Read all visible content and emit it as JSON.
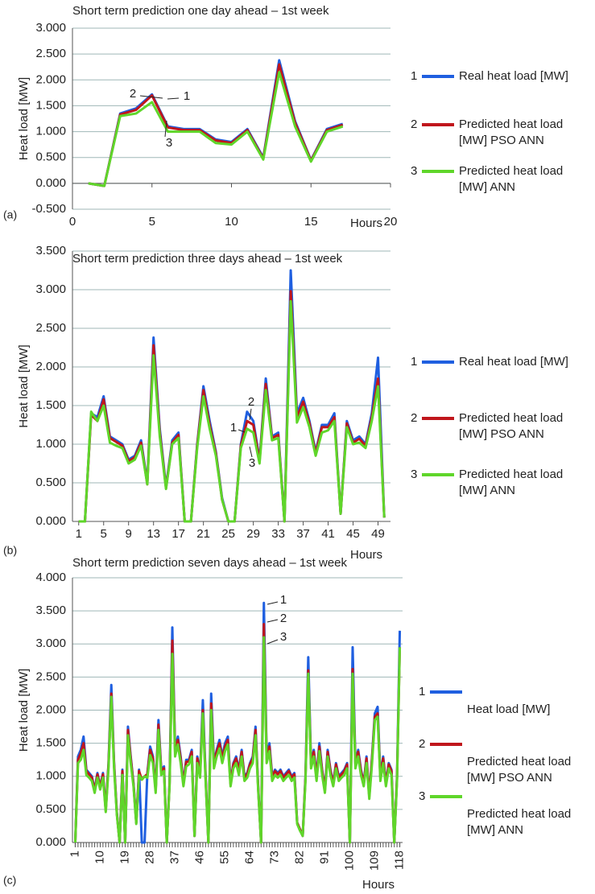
{
  "chart_data": [
    {
      "type": "line",
      "title": "Short term prediction one day ahead – 1st week",
      "panel_label": "(a)",
      "x_label": "Hours",
      "y_label": "Heat load [MW]",
      "grid": true,
      "x": [
        1,
        2,
        3,
        4,
        5,
        6,
        7,
        8,
        9,
        10,
        11,
        12,
        13,
        14,
        15,
        16,
        17
      ],
      "xlim": [
        0,
        20
      ],
      "xticks": [
        0,
        5,
        10,
        15,
        20
      ],
      "ylim": [
        -0.5,
        3
      ],
      "yticks": [
        {
          "value": -0.5,
          "label": "-0.500"
        },
        {
          "value": 0,
          "label": "0.000"
        },
        {
          "value": 0.5,
          "label": "0.500"
        },
        {
          "value": 1,
          "label": "1.000"
        },
        {
          "value": 1.5,
          "label": "1.500"
        },
        {
          "value": 2,
          "label": "2.000"
        },
        {
          "value": 2.5,
          "label": "2.500"
        },
        {
          "value": 3,
          "label": "3.000"
        }
      ],
      "series": [
        {
          "label": "1",
          "name": "Real heat load [MW]",
          "color": "#1f5fe0",
          "values": [
            0,
            -0.05,
            1.35,
            1.45,
            1.72,
            1.1,
            1.05,
            1.05,
            0.85,
            0.8,
            1.05,
            0.5,
            2.38,
            1.2,
            0.45,
            1.05,
            1.15
          ]
        },
        {
          "label": "2",
          "name": "Predicted heat load [MW] PSO ANN",
          "color": "#c0161c",
          "values": [
            0,
            -0.05,
            1.33,
            1.42,
            1.7,
            1.08,
            1.03,
            1.03,
            0.83,
            0.78,
            1.03,
            0.48,
            2.3,
            1.17,
            0.44,
            1.03,
            1.13
          ]
        },
        {
          "label": "3",
          "name": "Predicted heat load [MW] ANN",
          "color": "#5fd62a",
          "values": [
            0,
            -0.05,
            1.3,
            1.35,
            1.57,
            1.0,
            1.0,
            1.0,
            0.78,
            0.75,
            1.0,
            0.46,
            2.15,
            1.1,
            0.42,
            1.0,
            1.1
          ]
        }
      ]
    },
    {
      "type": "line",
      "title": "Short term prediction three days ahead – 1st week",
      "panel_label": "(b)",
      "x_label": "Hours",
      "y_label": "Heat load [MW]",
      "grid": true,
      "x": [
        1,
        2,
        3,
        4,
        5,
        6,
        7,
        8,
        9,
        10,
        11,
        12,
        13,
        14,
        15,
        16,
        17,
        18,
        19,
        20,
        21,
        22,
        23,
        24,
        25,
        26,
        27,
        28,
        29,
        30,
        31,
        32,
        33,
        34,
        35,
        36,
        37,
        38,
        39,
        40,
        41,
        42,
        43,
        44,
        45,
        46,
        47,
        48,
        49,
        50
      ],
      "xlim": [
        0,
        51
      ],
      "xticks": [
        1,
        5,
        9,
        13,
        17,
        21,
        25,
        29,
        33,
        37,
        41,
        45,
        49
      ],
      "ylim": [
        0,
        3.5
      ],
      "yticks": [
        {
          "value": 0,
          "label": "0.000"
        },
        {
          "value": 0.5,
          "label": "0.500"
        },
        {
          "value": 1,
          "label": "1.000"
        },
        {
          "value": 1.5,
          "label": "1.500"
        },
        {
          "value": 2,
          "label": "2.000"
        },
        {
          "value": 2.5,
          "label": "2.500"
        },
        {
          "value": 3,
          "label": "3.000"
        },
        {
          "value": 3.5,
          "label": "3.500"
        }
      ],
      "series": [
        {
          "label": "1",
          "name": "Real heat load [MW]",
          "color": "#1f5fe0",
          "values": [
            0,
            0,
            1.4,
            1.35,
            1.62,
            1.1,
            1.05,
            1.0,
            0.8,
            0.85,
            1.05,
            0.5,
            2.38,
            1.2,
            0.45,
            1.05,
            1.15,
            0,
            0,
            1.0,
            1.75,
            1.3,
            0.9,
            0.3,
            0,
            0,
            1.0,
            1.42,
            1.3,
            0.8,
            1.85,
            1.1,
            1.15,
            0,
            3.25,
            1.4,
            1.6,
            1.3,
            0.9,
            1.25,
            1.25,
            1.4,
            0.1,
            1.3,
            1.05,
            1.1,
            1.0,
            1.4,
            2.12,
            0.05
          ]
        },
        {
          "label": "2",
          "name": "Predicted heat load [MW] PSO ANN",
          "color": "#c0161c",
          "values": [
            0,
            0,
            1.38,
            1.3,
            1.58,
            1.08,
            1.03,
            0.98,
            0.78,
            0.83,
            1.02,
            0.48,
            2.28,
            1.15,
            0.43,
            1.02,
            1.12,
            0,
            0,
            0.98,
            1.7,
            1.25,
            0.88,
            0.28,
            0,
            0,
            0.98,
            1.3,
            1.25,
            0.78,
            1.78,
            1.08,
            1.12,
            0,
            2.98,
            1.35,
            1.55,
            1.27,
            0.88,
            1.22,
            1.22,
            1.35,
            0.1,
            1.27,
            1.02,
            1.07,
            0.98,
            1.35,
            1.85,
            0.05
          ]
        },
        {
          "label": "3",
          "name": "Predicted heat load [MW] ANN",
          "color": "#5fd62a",
          "values": [
            0,
            0,
            1.42,
            1.3,
            1.5,
            1.02,
            0.98,
            0.95,
            0.75,
            0.8,
            0.98,
            0.48,
            2.15,
            1.1,
            0.42,
            1.0,
            1.08,
            0,
            0,
            0.95,
            1.62,
            1.2,
            0.85,
            0.28,
            0,
            0,
            0.95,
            1.2,
            1.15,
            0.75,
            1.7,
            1.05,
            1.08,
            0,
            2.85,
            1.28,
            1.48,
            1.22,
            0.85,
            1.15,
            1.18,
            1.3,
            0.1,
            1.22,
            1.0,
            1.02,
            0.95,
            1.3,
            1.75,
            0.05
          ]
        }
      ]
    },
    {
      "type": "line",
      "title": "Short term prediction seven days ahead – 1st week",
      "panel_label": "(c)",
      "x_label": "Hours",
      "y_label": "Heat load [MW]",
      "grid": true,
      "x": [
        1,
        2,
        3,
        4,
        5,
        6,
        7,
        8,
        9,
        10,
        11,
        12,
        13,
        14,
        15,
        16,
        17,
        18,
        19,
        20,
        21,
        22,
        23,
        24,
        25,
        26,
        27,
        28,
        29,
        30,
        31,
        32,
        33,
        34,
        35,
        36,
        37,
        38,
        39,
        40,
        41,
        42,
        43,
        44,
        45,
        46,
        47,
        48,
        49,
        50,
        51,
        52,
        53,
        54,
        55,
        56,
        57,
        58,
        59,
        60,
        61,
        62,
        63,
        64,
        65,
        66,
        67,
        68,
        69,
        70,
        71,
        72,
        73,
        74,
        75,
        76,
        77,
        78,
        79,
        80,
        81,
        82,
        83,
        84,
        85,
        86,
        87,
        88,
        89,
        90,
        91,
        92,
        93,
        94,
        95,
        96,
        97,
        98,
        99,
        100,
        101,
        102,
        103,
        104,
        105,
        106,
        107,
        108,
        109,
        110,
        111,
        112,
        113,
        114,
        115,
        116,
        117,
        118
      ],
      "xlim": [
        0,
        119
      ],
      "xticks": [
        1,
        10,
        19,
        28,
        37,
        46,
        55,
        64,
        73,
        82,
        91,
        100,
        109,
        118
      ],
      "ylim": [
        0,
        4
      ],
      "yticks": [
        {
          "value": 0,
          "label": "0.000"
        },
        {
          "value": 0.5,
          "label": "0.500"
        },
        {
          "value": 1,
          "label": "1.000"
        },
        {
          "value": 1.5,
          "label": "1.500"
        },
        {
          "value": 2,
          "label": "2.000"
        },
        {
          "value": 2.5,
          "label": "2.500"
        },
        {
          "value": 3,
          "label": "3.000"
        },
        {
          "value": 3.5,
          "label": "3.500"
        },
        {
          "value": 4,
          "label": "4.000"
        }
      ],
      "series": [
        {
          "label": "1",
          "name": "Heat load [MW]",
          "color": "#1f5fe0",
          "values": [
            0,
            1.3,
            1.4,
            1.6,
            1.1,
            1.05,
            1.0,
            0.8,
            1.05,
            0.85,
            1.05,
            0.5,
            1.2,
            2.38,
            1.2,
            0.45,
            0,
            1.1,
            0,
            1.75,
            1.3,
            0.9,
            0.3,
            1.1,
            0,
            0,
            1.05,
            1.45,
            1.3,
            0.8,
            1.85,
            1.1,
            1.15,
            0,
            0.9,
            3.25,
            1.4,
            1.6,
            1.3,
            0.9,
            1.25,
            1.25,
            1.4,
            0.1,
            1.3,
            1.05,
            2.15,
            1.0,
            0,
            2.25,
            1.2,
            1.4,
            1.55,
            1.3,
            1.5,
            1.6,
            0.9,
            1.2,
            1.3,
            1.1,
            1.4,
            1.0,
            1.05,
            1.2,
            1.3,
            1.75,
            0.8,
            0,
            3.62,
            1.3,
            1.5,
            1.0,
            1.1,
            1.05,
            1.1,
            1.0,
            1.05,
            1.1,
            1.0,
            1.05,
            0.3,
            0.2,
            0.1,
            1.0,
            2.8,
            1.2,
            1.4,
            1.0,
            1.5,
            1.1,
            0.8,
            1.4,
            1.1,
            0.9,
            1.2,
            1.0,
            1.05,
            1.1,
            1.2,
            0,
            2.95,
            1.2,
            1.4,
            1.1,
            0.9,
            1.3,
            0.7,
            1.3,
            1.95,
            2.05,
            1.0,
            1.3,
            0.9,
            1.2,
            1.1,
            0,
            1.0,
            3.2
          ]
        },
        {
          "label": "2",
          "name": "Predicted heat load [MW] PSO ANN",
          "color": "#c0161c",
          "values": [
            0,
            1.25,
            1.35,
            1.5,
            1.08,
            1.03,
            0.98,
            0.78,
            1.03,
            0.83,
            1.03,
            0.48,
            1.18,
            2.25,
            1.18,
            0.44,
            0,
            1.08,
            0,
            1.7,
            1.27,
            0.88,
            0.3,
            1.08,
            0.95,
            1.0,
            1.03,
            1.4,
            1.27,
            0.78,
            1.78,
            1.08,
            1.12,
            0,
            0.88,
            3.05,
            1.37,
            1.55,
            1.27,
            0.88,
            1.22,
            1.22,
            1.37,
            0.1,
            1.27,
            1.03,
            2.0,
            0.98,
            0,
            2.1,
            1.18,
            1.37,
            1.5,
            1.27,
            1.45,
            1.55,
            0.88,
            1.18,
            1.27,
            1.08,
            1.37,
            0.98,
            1.03,
            1.18,
            1.27,
            1.7,
            0.78,
            0,
            3.3,
            1.27,
            1.45,
            0.98,
            1.08,
            1.03,
            1.08,
            0.98,
            1.03,
            1.08,
            0.98,
            1.03,
            0.3,
            0.2,
            0.1,
            0.98,
            2.6,
            1.18,
            1.37,
            0.98,
            1.45,
            1.08,
            0.78,
            1.37,
            1.08,
            0.88,
            1.18,
            0.98,
            1.03,
            1.08,
            1.18,
            0,
            2.62,
            1.18,
            1.37,
            1.08,
            0.88,
            1.27,
            0.7,
            1.27,
            1.9,
            1.95,
            0.98,
            1.27,
            0.88,
            1.18,
            1.08,
            0,
            0.98,
            2.95
          ]
        },
        {
          "label": "3",
          "name": "Predicted heat load [MW] ANN",
          "color": "#5fd62a",
          "values": [
            0,
            1.2,
            1.25,
            1.4,
            1.02,
            0.98,
            0.93,
            0.75,
            0.98,
            0.8,
            0.98,
            0.46,
            1.12,
            2.2,
            1.12,
            0.42,
            0,
            1.02,
            0,
            1.62,
            1.2,
            0.85,
            0.28,
            1.02,
            0.95,
            1.0,
            0.98,
            1.32,
            1.2,
            0.75,
            1.7,
            1.02,
            1.08,
            0,
            0.85,
            2.85,
            1.3,
            1.48,
            1.2,
            0.85,
            1.15,
            1.18,
            1.3,
            0.1,
            1.2,
            0.98,
            1.95,
            0.93,
            0,
            2.0,
            1.12,
            1.3,
            1.42,
            1.2,
            1.38,
            1.48,
            0.85,
            1.12,
            1.2,
            1.02,
            1.3,
            0.93,
            0.98,
            1.12,
            1.2,
            1.62,
            0.75,
            0,
            3.1,
            1.2,
            1.38,
            0.93,
            1.02,
            0.98,
            1.02,
            0.93,
            0.98,
            1.02,
            0.93,
            0.98,
            0.28,
            0.18,
            0.1,
            0.93,
            2.55,
            1.12,
            1.3,
            0.93,
            1.38,
            1.02,
            0.75,
            1.3,
            1.02,
            0.85,
            1.12,
            0.93,
            0.98,
            1.02,
            1.12,
            0,
            2.55,
            1.12,
            1.3,
            1.02,
            0.85,
            1.2,
            0.66,
            1.2,
            1.85,
            1.9,
            0.93,
            1.2,
            0.85,
            1.12,
            1.02,
            0,
            0.93,
            2.95
          ]
        }
      ]
    }
  ]
}
